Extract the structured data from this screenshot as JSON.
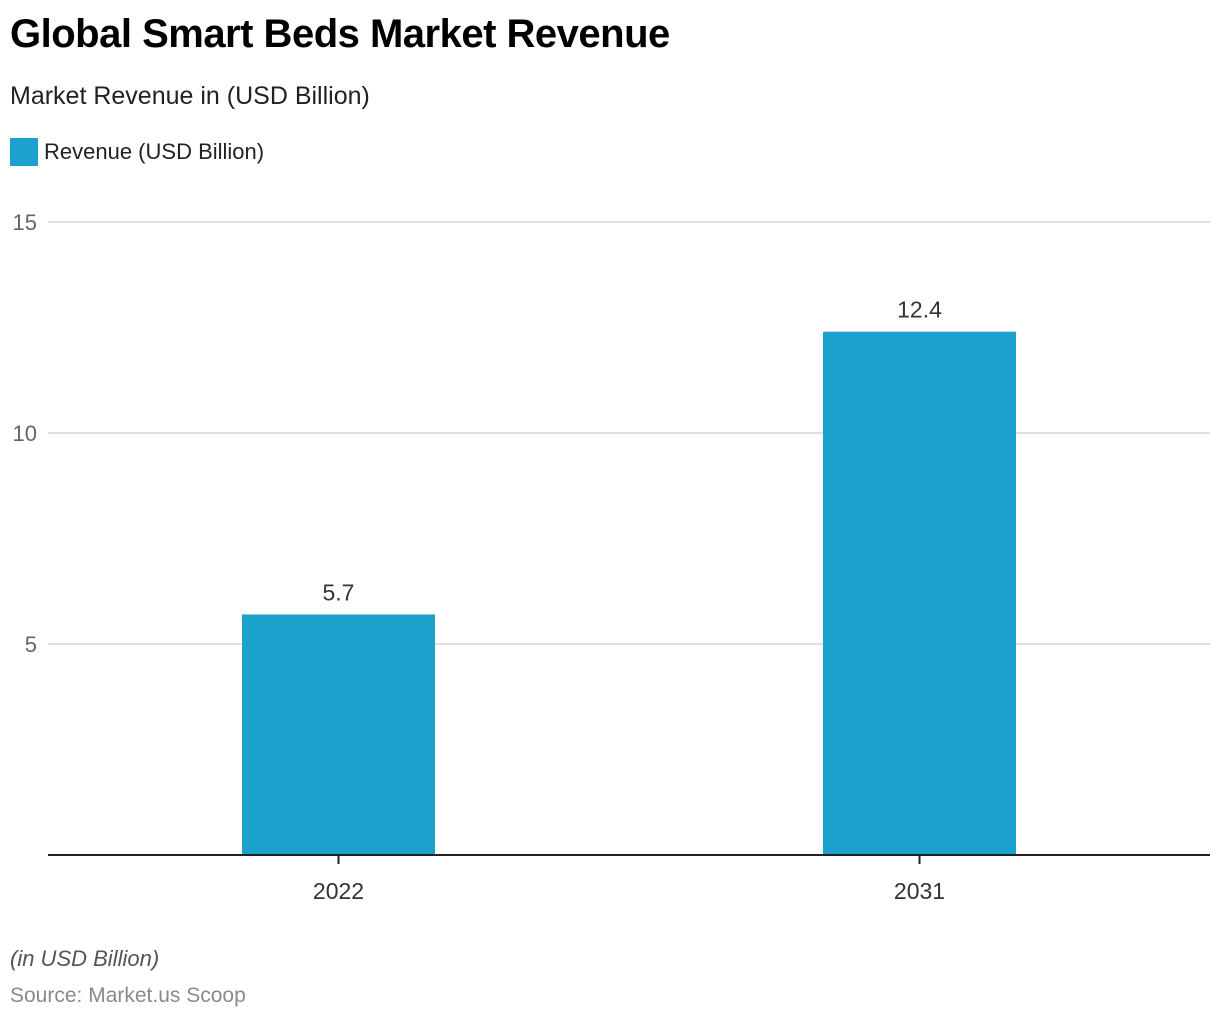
{
  "chart_data": {
    "type": "bar",
    "title": "Global Smart Beds Market Revenue",
    "subtitle": "Market Revenue in (USD Billion)",
    "categories": [
      "2022",
      "2031"
    ],
    "series": [
      {
        "name": "Revenue (USD Billion)",
        "values": [
          5.7,
          12.4
        ],
        "color": "#1aa1cc"
      }
    ],
    "data_labels": [
      "5.7",
      "12.4"
    ],
    "xlabel": "",
    "ylabel": "",
    "ylim": [
      0,
      15
    ],
    "yticks": [
      5,
      10,
      15
    ],
    "ytick_labels": [
      "5",
      "10",
      "15"
    ],
    "grid": true,
    "legend_position": "top-left",
    "note": "(in USD Billion)",
    "source": "Source: Market.us Scoop"
  }
}
